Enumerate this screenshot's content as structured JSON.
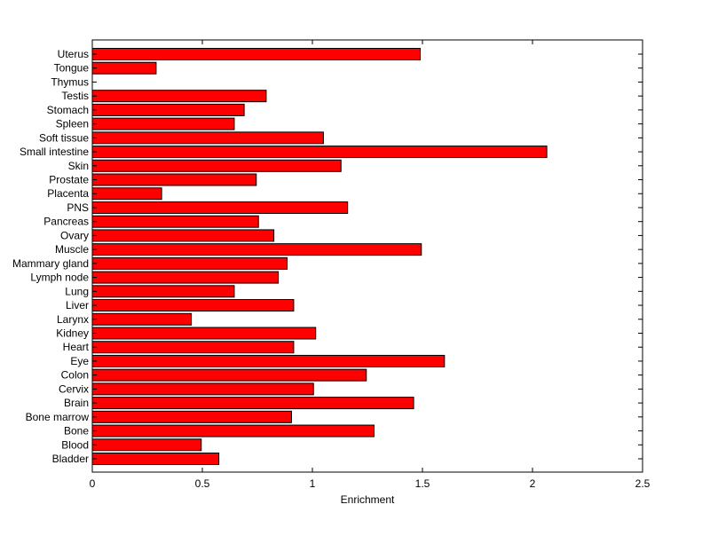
{
  "chart_data": {
    "type": "bar",
    "orientation": "horizontal",
    "title": "",
    "xlabel": "Enrichment",
    "ylabel": "",
    "xlim": [
      0,
      2.5
    ],
    "xticks": [
      "0",
      "0.5",
      "1",
      "1.5",
      "2",
      "2.5"
    ],
    "xtick_values": [
      0,
      0.5,
      1,
      1.5,
      2,
      2.5
    ],
    "grid": false,
    "bar_color": "#ff0000",
    "categories": [
      "Uterus",
      "Tongue",
      "Thymus",
      "Testis",
      "Stomach",
      "Spleen",
      "Soft tissue",
      "Small intestine",
      "Skin",
      "Prostate",
      "Placenta",
      "PNS",
      "Pancreas",
      "Ovary",
      "Muscle",
      "Mammary gland",
      "Lymph node",
      "Lung",
      "Liver",
      "Larynx",
      "Kidney",
      "Heart",
      "Eye",
      "Colon",
      "Cervix",
      "Brain",
      "Bone marrow",
      "Bone",
      "Blood",
      "Bladder"
    ],
    "values": [
      1.49,
      0.29,
      0,
      0.79,
      0.69,
      0.645,
      1.05,
      2.065,
      1.13,
      0.745,
      0.315,
      1.16,
      0.755,
      0.825,
      1.495,
      0.885,
      0.845,
      0.645,
      0.915,
      0.45,
      1.015,
      0.915,
      1.6,
      1.245,
      1.005,
      1.46,
      0.905,
      1.28,
      0.495,
      0.575
    ]
  }
}
